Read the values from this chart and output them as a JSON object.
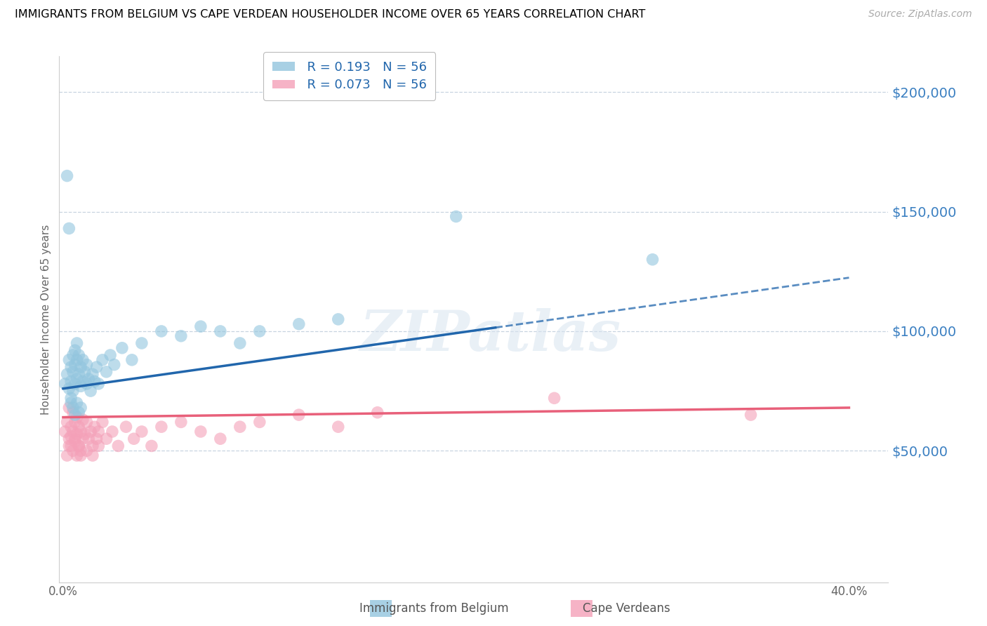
{
  "title": "IMMIGRANTS FROM BELGIUM VS CAPE VERDEAN HOUSEHOLDER INCOME OVER 65 YEARS CORRELATION CHART",
  "source": "Source: ZipAtlas.com",
  "ylabel": "Householder Income Over 65 years",
  "xlim": [
    -0.002,
    0.42
  ],
  "ylim": [
    -5000,
    215000
  ],
  "yticks": [
    50000,
    100000,
    150000,
    200000
  ],
  "ytick_labels": [
    "$50,000",
    "$100,000",
    "$150,000",
    "$200,000"
  ],
  "xticks": [
    0.0,
    0.1,
    0.2,
    0.3,
    0.4
  ],
  "xtick_labels": [
    "0.0%",
    "",
    "",
    "",
    "40.0%"
  ],
  "blue_R": 0.193,
  "blue_N": 56,
  "pink_R": 0.073,
  "pink_N": 56,
  "blue_color": "#92c5de",
  "pink_color": "#f4a0b8",
  "blue_line_color": "#2166ac",
  "pink_line_color": "#e8607a",
  "grid_color": "#c8d4e0",
  "watermark_text": "ZIPatlas",
  "blue_scatter_x": [
    0.001,
    0.002,
    0.003,
    0.003,
    0.004,
    0.004,
    0.004,
    0.005,
    0.005,
    0.005,
    0.006,
    0.006,
    0.006,
    0.007,
    0.007,
    0.007,
    0.008,
    0.008,
    0.009,
    0.009,
    0.01,
    0.01,
    0.011,
    0.012,
    0.012,
    0.013,
    0.014,
    0.015,
    0.016,
    0.017,
    0.018,
    0.02,
    0.022,
    0.024,
    0.026,
    0.03,
    0.035,
    0.04,
    0.05,
    0.06,
    0.07,
    0.08,
    0.09,
    0.1,
    0.12,
    0.14,
    0.002,
    0.003,
    0.004,
    0.005,
    0.006,
    0.007,
    0.008,
    0.009,
    0.2,
    0.3
  ],
  "blue_scatter_y": [
    78000,
    82000,
    88000,
    76000,
    85000,
    79000,
    72000,
    90000,
    83000,
    75000,
    92000,
    86000,
    78000,
    95000,
    88000,
    80000,
    90000,
    82000,
    85000,
    77000,
    88000,
    79000,
    83000,
    86000,
    78000,
    80000,
    75000,
    82000,
    79000,
    85000,
    78000,
    88000,
    83000,
    90000,
    86000,
    93000,
    88000,
    95000,
    100000,
    98000,
    102000,
    100000,
    95000,
    100000,
    103000,
    105000,
    165000,
    143000,
    70000,
    68000,
    65000,
    70000,
    66000,
    68000,
    148000,
    130000
  ],
  "pink_scatter_x": [
    0.001,
    0.002,
    0.003,
    0.003,
    0.004,
    0.004,
    0.005,
    0.005,
    0.006,
    0.006,
    0.007,
    0.007,
    0.008,
    0.008,
    0.009,
    0.009,
    0.01,
    0.011,
    0.012,
    0.013,
    0.014,
    0.015,
    0.016,
    0.017,
    0.018,
    0.02,
    0.022,
    0.025,
    0.028,
    0.032,
    0.036,
    0.04,
    0.045,
    0.05,
    0.06,
    0.07,
    0.08,
    0.09,
    0.1,
    0.12,
    0.14,
    0.16,
    0.002,
    0.003,
    0.004,
    0.005,
    0.006,
    0.007,
    0.008,
    0.009,
    0.01,
    0.012,
    0.015,
    0.018,
    0.25,
    0.35
  ],
  "pink_scatter_y": [
    58000,
    62000,
    55000,
    68000,
    60000,
    52000,
    66000,
    58000,
    62000,
    55000,
    64000,
    57000,
    60000,
    52000,
    58000,
    50000,
    63000,
    57000,
    62000,
    55000,
    58000,
    52000,
    60000,
    55000,
    58000,
    62000,
    55000,
    58000,
    52000,
    60000,
    55000,
    58000,
    52000,
    60000,
    62000,
    58000,
    55000,
    60000,
    62000,
    65000,
    60000,
    66000,
    48000,
    52000,
    56000,
    50000,
    54000,
    48000,
    52000,
    48000,
    55000,
    50000,
    48000,
    52000,
    72000,
    65000
  ],
  "blue_line_start_x": 0.0,
  "blue_line_end_solid": 0.22,
  "blue_line_end_dash": 0.4,
  "blue_line_y_at_0": 76000,
  "blue_line_y_at_025": 105000,
  "pink_line_y_at_0": 64000,
  "pink_line_y_at_04": 68000
}
